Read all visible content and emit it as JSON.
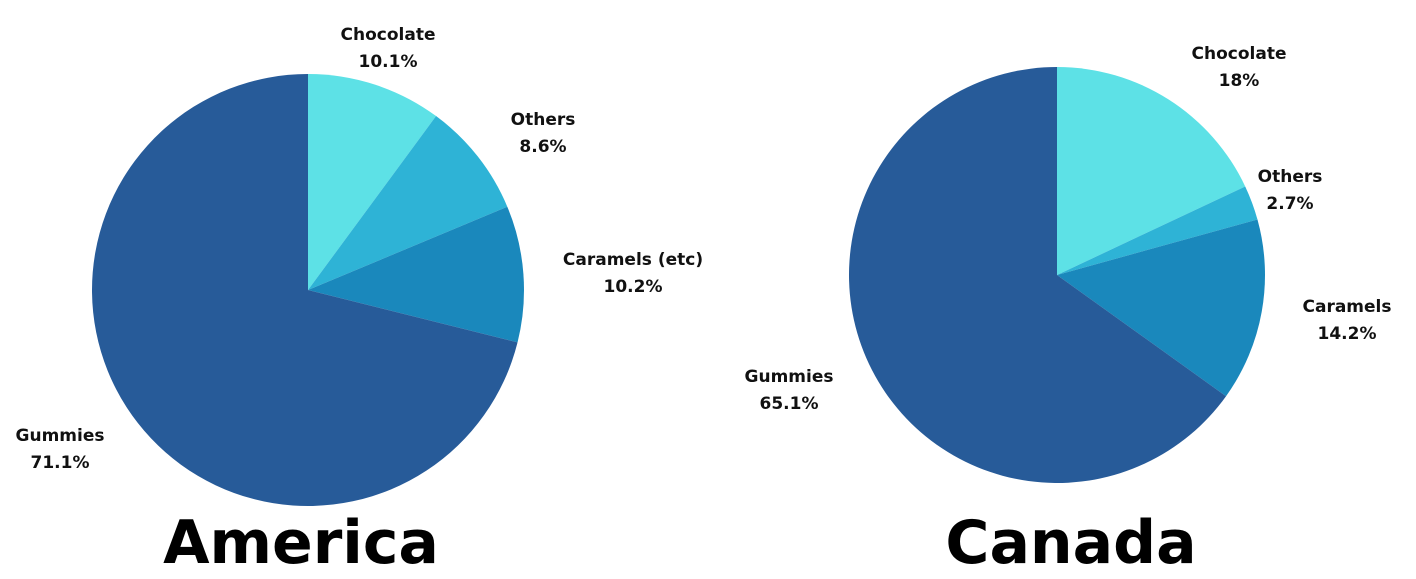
{
  "chart_data": [
    {
      "type": "pie",
      "title": "America",
      "slices": [
        {
          "label": "Chocolate",
          "value": 10.1,
          "display": "10.1%",
          "color": "#5de1e6"
        },
        {
          "label": "Others",
          "value": 8.6,
          "display": "8.6%",
          "color": "#2eb3d6"
        },
        {
          "label": "Caramels (etc)",
          "value": 10.2,
          "display": "10.2%",
          "color": "#1a88bc"
        },
        {
          "label": "Gummies",
          "value": 71.1,
          "display": "71.1%",
          "color": "#275b99"
        }
      ]
    },
    {
      "type": "pie",
      "title": "Canada",
      "slices": [
        {
          "label": "Chocolate",
          "value": 18,
          "display": "18%",
          "color": "#5de1e6"
        },
        {
          "label": "Others",
          "value": 2.7,
          "display": "2.7%",
          "color": "#2eb3d6"
        },
        {
          "label": "Caramels",
          "value": 14.2,
          "display": "14.2%",
          "color": "#1a88bc"
        },
        {
          "label": "Gummies",
          "value": 65.1,
          "display": "65.1%",
          "color": "#275b99"
        }
      ]
    }
  ]
}
